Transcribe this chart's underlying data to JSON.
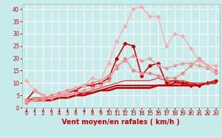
{
  "title": "",
  "xlabel": "Vent moyen/en rafales ( km/h )",
  "ylabel": "",
  "xlim": [
    -0.5,
    23.5
  ],
  "ylim": [
    0,
    42
  ],
  "xticks": [
    0,
    1,
    2,
    3,
    4,
    5,
    6,
    7,
    8,
    9,
    10,
    11,
    12,
    13,
    14,
    15,
    16,
    17,
    18,
    19,
    20,
    21,
    22,
    23
  ],
  "yticks": [
    0,
    5,
    10,
    15,
    20,
    25,
    30,
    35,
    40
  ],
  "background_color": "#c8ecec",
  "grid_color": "#ffffff",
  "series": [
    {
      "x": [
        0,
        1,
        2,
        3,
        4,
        5,
        6,
        7,
        8,
        9,
        10,
        11,
        12,
        13,
        14,
        15,
        16,
        17,
        18,
        19,
        20,
        21,
        22,
        23
      ],
      "y": [
        3,
        7,
        5,
        4,
        5,
        6,
        7,
        9,
        9,
        10,
        12,
        20,
        26,
        25,
        13,
        17,
        18,
        10,
        11,
        10,
        9,
        9,
        10,
        11
      ],
      "color": "#cc0000",
      "lw": 1.2,
      "marker": "D",
      "ms": 2.5
    },
    {
      "x": [
        0,
        1,
        2,
        3,
        4,
        5,
        6,
        7,
        8,
        9,
        10,
        11,
        12,
        13,
        14,
        15,
        16,
        17,
        18,
        19,
        20,
        21,
        22,
        23
      ],
      "y": [
        3,
        3,
        3,
        3,
        4,
        4,
        5,
        5,
        6,
        7,
        7,
        8,
        8,
        8,
        8,
        8,
        9,
        9,
        9,
        9,
        9,
        9,
        10,
        10
      ],
      "color": "#cc0000",
      "lw": 2.0,
      "marker": null,
      "ms": 0
    },
    {
      "x": [
        0,
        1,
        2,
        3,
        4,
        5,
        6,
        7,
        8,
        9,
        10,
        11,
        12,
        13,
        14,
        15,
        16,
        17,
        18,
        19,
        20,
        21,
        22,
        23
      ],
      "y": [
        3,
        3,
        3,
        3,
        4,
        4,
        5,
        6,
        6,
        7,
        8,
        9,
        9,
        9,
        9,
        9,
        9,
        9,
        10,
        10,
        10,
        9,
        10,
        10
      ],
      "color": "#cc0000",
      "lw": 1.5,
      "marker": null,
      "ms": 0
    },
    {
      "x": [
        0,
        1,
        2,
        3,
        4,
        5,
        6,
        7,
        8,
        9,
        10,
        11,
        12,
        13,
        14,
        15,
        16,
        17,
        18,
        19,
        20,
        21,
        22,
        23
      ],
      "y": [
        3,
        4,
        4,
        4,
        5,
        5,
        6,
        6,
        7,
        8,
        9,
        10,
        11,
        11,
        11,
        11,
        12,
        11,
        11,
        11,
        10,
        10,
        10,
        10
      ],
      "color": "#dd4444",
      "lw": 1.0,
      "marker": null,
      "ms": 0
    },
    {
      "x": [
        0,
        1,
        2,
        3,
        4,
        5,
        6,
        7,
        8,
        9,
        10,
        11,
        12,
        13,
        14,
        15,
        16,
        17,
        18,
        19,
        20,
        21,
        22,
        23
      ],
      "y": [
        2,
        3,
        4,
        5,
        6,
        7,
        8,
        9,
        10,
        11,
        13,
        16,
        20,
        15,
        14,
        14,
        13,
        12,
        12,
        14,
        17,
        20,
        17,
        15
      ],
      "color": "#ee8888",
      "lw": 1.0,
      "marker": "D",
      "ms": 2.5
    },
    {
      "x": [
        0,
        1,
        2,
        3,
        4,
        5,
        6,
        7,
        8,
        9,
        10,
        11,
        12,
        13,
        14,
        15,
        16,
        17,
        18,
        19,
        20,
        21,
        22,
        23
      ],
      "y": [
        11,
        7,
        5,
        4,
        5,
        6,
        8,
        9,
        12,
        11,
        18,
        27,
        33,
        40,
        41,
        37,
        37,
        25,
        30,
        29,
        24,
        19,
        17,
        17
      ],
      "color": "#ffaaaa",
      "lw": 1.0,
      "marker": "D",
      "ms": 2.5
    },
    {
      "x": [
        0,
        1,
        2,
        3,
        4,
        5,
        6,
        7,
        8,
        9,
        10,
        11,
        12,
        13,
        14,
        15,
        16,
        17,
        18,
        19,
        20,
        21,
        22,
        23
      ],
      "y": [
        3,
        3,
        3,
        4,
        5,
        5,
        6,
        7,
        8,
        9,
        11,
        17,
        19,
        21,
        19,
        20,
        17,
        16,
        17,
        18,
        18,
        17,
        16,
        14
      ],
      "color": "#ee9999",
      "lw": 1.0,
      "marker": "D",
      "ms": 2.5
    }
  ],
  "arrow_color": "#cc0000",
  "xlabel_color": "#cc0000",
  "xlabel_fontsize": 7,
  "tick_fontsize": 5.5,
  "tick_color": "#cc0000",
  "arrow_angles": [
    0,
    0,
    0,
    0,
    0,
    0,
    0,
    0,
    0,
    0,
    20,
    35,
    45,
    55,
    70,
    90,
    100,
    110,
    120,
    135,
    150,
    165,
    180,
    170
  ]
}
